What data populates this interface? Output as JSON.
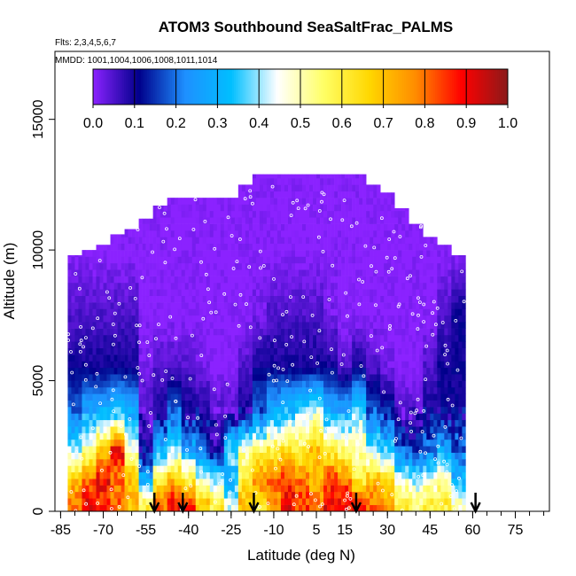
{
  "chart_data": {
    "type": "heatmap",
    "title": "ATOM3 Southbound SeaSaltFrac_PALMS",
    "subtitle_flights": "Flts: 2,3,4,5,6,7",
    "subtitle_mmdd": "MMDD: 1001,1004,1006,1008,1011,1014",
    "xlabel": "Latitude (deg N)",
    "ylabel": "Altitude (m)",
    "xlim": [
      -87,
      87
    ],
    "ylim": [
      0,
      15000
    ],
    "x_ticks": [
      -85,
      -70,
      -55,
      -40,
      -25,
      -10,
      5,
      15,
      30,
      45,
      60,
      75
    ],
    "y_ticks": [
      0,
      5000,
      10000,
      15000
    ],
    "colorbar": {
      "range": [
        0,
        1
      ],
      "tick_labels": [
        "0.0",
        "0.1",
        "0.2",
        "0.3",
        "0.4",
        "0.5",
        "0.6",
        "0.7",
        "0.8",
        "0.9",
        "1.0"
      ],
      "colors": [
        "#8B22FF",
        "#00008B",
        "#1E90FF",
        "#00BFFF",
        "#FFFFFF",
        "#FFFF66",
        "#FFD700",
        "#FF8C00",
        "#FF0000",
        "#8B1A1A"
      ]
    },
    "arrows_lat": [
      -52,
      -42,
      -17,
      19,
      61
    ],
    "columns": [
      {
        "lat": -80,
        "top": 9800,
        "levels": [
          0.8,
          0.7,
          0.4,
          0.2,
          0.1,
          0.05,
          0.0
        ]
      },
      {
        "lat": -75,
        "top": 10000,
        "levels": [
          0.9,
          0.8,
          0.5,
          0.3,
          0.1,
          0.05,
          0.0
        ]
      },
      {
        "lat": -70,
        "top": 10200,
        "levels": [
          0.85,
          0.9,
          0.7,
          0.3,
          0.1,
          0.05,
          0.0
        ]
      },
      {
        "lat": -65,
        "top": 10600,
        "levels": [
          0.8,
          0.8,
          0.9,
          0.35,
          0.1,
          0.05,
          0.0
        ]
      },
      {
        "lat": -60,
        "top": 10800,
        "levels": [
          0.7,
          0.7,
          0.5,
          0.3,
          0.1,
          0.05,
          0.0
        ]
      },
      {
        "lat": -55,
        "top": 11200,
        "levels": [
          0.6,
          0.3,
          0.1,
          0.05,
          0.02,
          0.0,
          0.0
        ]
      },
      {
        "lat": -50,
        "top": 11700,
        "levels": [
          0.8,
          0.6,
          0.3,
          0.1,
          0.05,
          0.0,
          0.0
        ]
      },
      {
        "lat": -45,
        "top": 12000,
        "levels": [
          0.9,
          0.7,
          0.4,
          0.2,
          0.05,
          0.0,
          0.0
        ]
      },
      {
        "lat": -40,
        "top": 12000,
        "levels": [
          0.85,
          0.6,
          0.3,
          0.1,
          0.05,
          0.0,
          0.0
        ]
      },
      {
        "lat": -35,
        "top": 12000,
        "levels": [
          0.7,
          0.45,
          0.2,
          0.1,
          0.02,
          0.0,
          0.0
        ]
      },
      {
        "lat": -30,
        "top": 12000,
        "levels": [
          0.6,
          0.4,
          0.1,
          0.05,
          0.0,
          0.0,
          0.0
        ]
      },
      {
        "lat": -25,
        "top": 12000,
        "levels": [
          0.45,
          0.3,
          0.4,
          0.05,
          0.0,
          0.0,
          0.0
        ]
      },
      {
        "lat": -20,
        "top": 12500,
        "levels": [
          0.7,
          0.6,
          0.5,
          0.1,
          0.05,
          0.0,
          0.0
        ]
      },
      {
        "lat": -15,
        "top": 12900,
        "levels": [
          0.6,
          0.8,
          0.55,
          0.2,
          0.1,
          0.02,
          0.0
        ]
      },
      {
        "lat": -10,
        "top": 12900,
        "levels": [
          0.75,
          0.8,
          0.6,
          0.3,
          0.1,
          0.05,
          0.0
        ]
      },
      {
        "lat": -5,
        "top": 12900,
        "levels": [
          0.9,
          0.85,
          0.65,
          0.35,
          0.1,
          0.05,
          0.0
        ]
      },
      {
        "lat": 0,
        "top": 12900,
        "levels": [
          0.85,
          0.8,
          0.6,
          0.4,
          0.1,
          0.05,
          0.0
        ]
      },
      {
        "lat": 5,
        "top": 12900,
        "levels": [
          0.8,
          0.7,
          0.7,
          0.45,
          0.1,
          0.05,
          0.0
        ]
      },
      {
        "lat": 10,
        "top": 12900,
        "levels": [
          0.9,
          0.85,
          0.6,
          0.3,
          0.1,
          0.02,
          0.0
        ]
      },
      {
        "lat": 15,
        "top": 12900,
        "levels": [
          0.9,
          0.8,
          0.55,
          0.3,
          0.05,
          0.0,
          0.0
        ]
      },
      {
        "lat": 20,
        "top": 12900,
        "levels": [
          0.85,
          0.6,
          0.5,
          0.4,
          0.1,
          0.0,
          0.0
        ]
      },
      {
        "lat": 25,
        "top": 12500,
        "levels": [
          0.8,
          0.7,
          0.4,
          0.2,
          0.05,
          0.0,
          0.0
        ]
      },
      {
        "lat": 30,
        "top": 12200,
        "levels": [
          0.75,
          0.65,
          0.35,
          0.15,
          0.02,
          0.0,
          0.0
        ]
      },
      {
        "lat": 35,
        "top": 11600,
        "levels": [
          0.6,
          0.45,
          0.2,
          0.05,
          0.0,
          0.0,
          0.0
        ]
      },
      {
        "lat": 40,
        "top": 11000,
        "levels": [
          0.55,
          0.4,
          0.15,
          0.05,
          0.0,
          0.0,
          0.0
        ]
      },
      {
        "lat": 45,
        "top": 10500,
        "levels": [
          0.6,
          0.45,
          0.2,
          0.1,
          0.05,
          0.0,
          0.0
        ]
      },
      {
        "lat": 50,
        "top": 10200,
        "levels": [
          0.6,
          0.5,
          0.3,
          0.1,
          0.1,
          0.05,
          0.0
        ]
      },
      {
        "lat": 55,
        "top": 9800,
        "levels": [
          0.5,
          0.3,
          0.2,
          0.1,
          0.1,
          0.1,
          0.0
        ]
      }
    ],
    "level_altitudes": [
      300,
      1200,
      2300,
      3700,
      5500,
      7500,
      10000
    ],
    "grid": false,
    "colorbar_placement": "top-inside"
  }
}
